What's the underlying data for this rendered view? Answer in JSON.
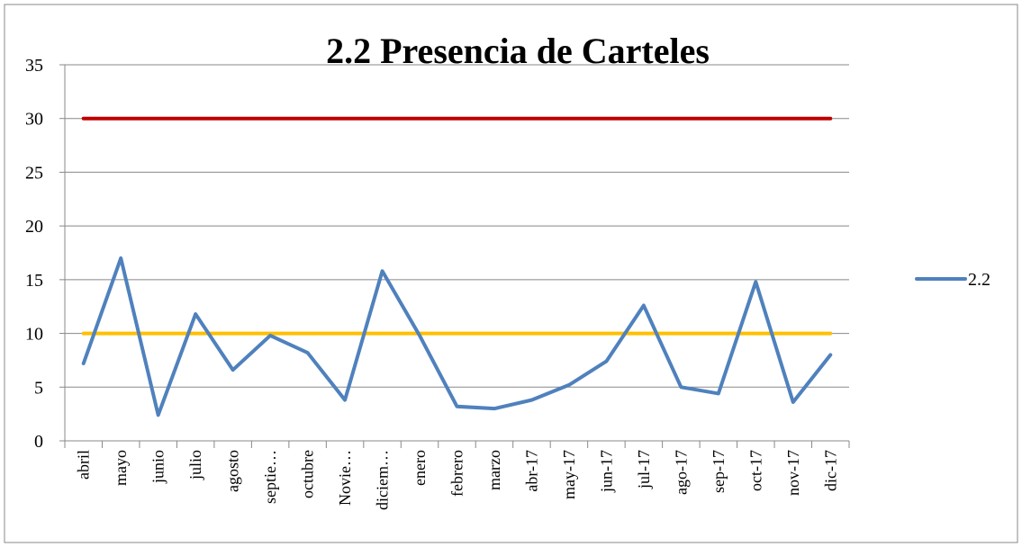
{
  "chart_data": {
    "type": "line",
    "title": "2.2 Presencia de Carteles",
    "categories": [
      "abril",
      "mayo",
      "junio",
      "julio",
      "agosto",
      "septie…",
      "octubre",
      "Novie…",
      "diciem…",
      "enero",
      "febrero",
      "marzo",
      "abr-17",
      "may-17",
      "jun-17",
      "jul-17",
      "ago-17",
      "sep-17",
      "oct-17",
      "nov-17",
      "dic-17"
    ],
    "series": [
      {
        "name": "2.2",
        "color": "#4f81bd",
        "values": [
          7.2,
          17,
          2.4,
          11.8,
          6.6,
          9.8,
          8.2,
          3.8,
          15.8,
          9.8,
          3.2,
          3.0,
          3.8,
          5.2,
          7.4,
          12.6,
          5.0,
          4.4,
          14.8,
          3.6,
          8.0
        ]
      }
    ],
    "reference_lines": [
      {
        "value": 30,
        "color": "#c00000"
      },
      {
        "value": 10,
        "color": "#ffc000"
      }
    ],
    "ylim": [
      0,
      35
    ],
    "yticks": [
      0,
      5,
      10,
      15,
      20,
      25,
      30,
      35
    ],
    "grid": true,
    "legend": "right"
  }
}
